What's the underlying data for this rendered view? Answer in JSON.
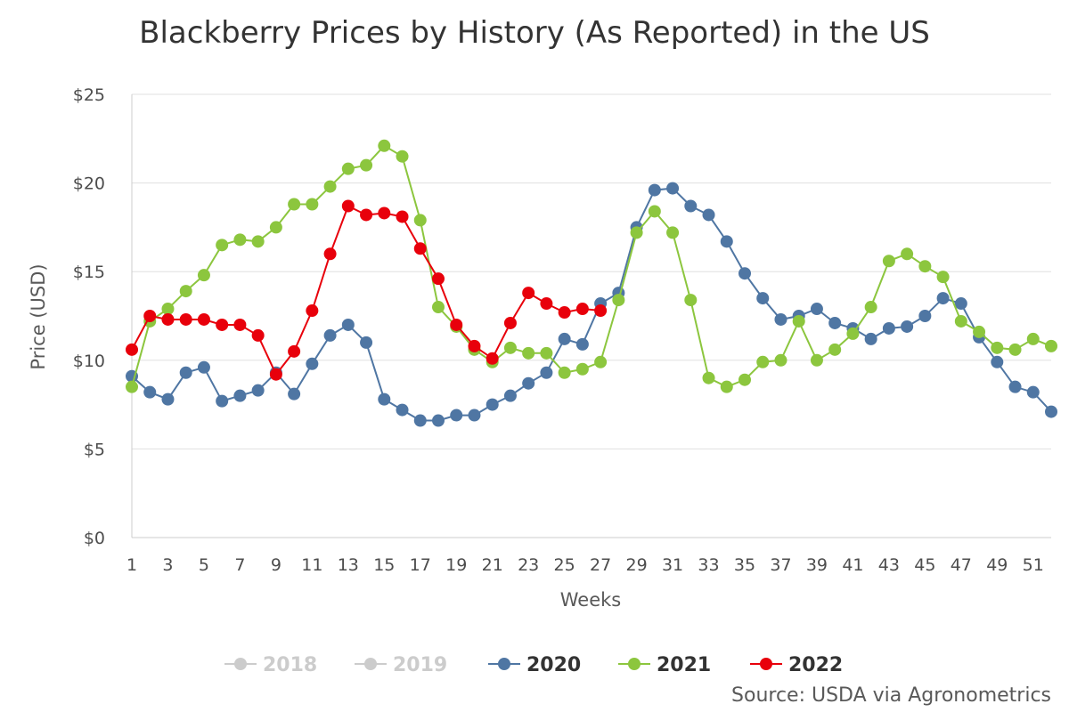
{
  "chart_data": {
    "type": "line",
    "title": "Blackberry Prices by History (As Reported) in the US",
    "xlabel": "Weeks",
    "ylabel": "Price (USD)",
    "x_ticks": [
      "1",
      "3",
      "5",
      "7",
      "9",
      "11",
      "13",
      "15",
      "17",
      "19",
      "21",
      "23",
      "25",
      "27",
      "29",
      "31",
      "33",
      "35",
      "37",
      "39",
      "41",
      "43",
      "45",
      "47",
      "49",
      "51"
    ],
    "y_ticks": [
      "$0",
      "$5",
      "$10",
      "$15",
      "$20",
      "$25"
    ],
    "xlim": [
      1,
      52
    ],
    "ylim": [
      0,
      25
    ],
    "grid": "horizontal",
    "legend_position": "bottom",
    "source": "Source: USDA via Agronometrics",
    "series": [
      {
        "name": "2018",
        "color": "#c8c8c8",
        "visible": false,
        "x": [],
        "y": []
      },
      {
        "name": "2019",
        "color": "#c8c8c8",
        "visible": false,
        "x": [],
        "y": []
      },
      {
        "name": "2020",
        "color": "#4f76a3",
        "visible": true,
        "x": [
          1,
          2,
          3,
          4,
          5,
          6,
          7,
          8,
          9,
          10,
          11,
          12,
          13,
          14,
          15,
          16,
          17,
          18,
          19,
          20,
          21,
          22,
          23,
          24,
          25,
          26,
          27,
          28,
          29,
          30,
          31,
          32,
          33,
          34,
          35,
          36,
          37,
          38,
          39,
          40,
          41,
          42,
          43,
          44,
          45,
          46,
          47,
          48,
          49,
          50,
          51,
          52
        ],
        "y": [
          9.1,
          8.2,
          7.8,
          9.3,
          9.6,
          7.7,
          8.0,
          8.3,
          9.3,
          8.1,
          9.8,
          11.4,
          12.0,
          11.0,
          7.8,
          7.2,
          6.6,
          6.6,
          6.9,
          6.9,
          7.5,
          8.0,
          8.7,
          9.3,
          11.2,
          10.9,
          13.2,
          13.8,
          17.5,
          19.6,
          19.7,
          18.7,
          18.2,
          16.7,
          14.9,
          13.5,
          12.3,
          12.5,
          12.9,
          12.1,
          11.8,
          11.2,
          11.8,
          11.9,
          12.5,
          13.5,
          13.2,
          11.3,
          9.9,
          8.5,
          8.2,
          7.1
        ]
      },
      {
        "name": "2021",
        "color": "#8cc63e",
        "visible": true,
        "x": [
          1,
          2,
          3,
          4,
          5,
          6,
          7,
          8,
          9,
          10,
          11,
          12,
          13,
          14,
          15,
          16,
          17,
          18,
          19,
          20,
          21,
          22,
          23,
          24,
          25,
          26,
          27,
          28,
          29,
          30,
          31,
          32,
          33,
          34,
          35,
          36,
          37,
          38,
          39,
          40,
          41,
          42,
          43,
          44,
          45,
          46,
          47,
          48,
          49,
          50,
          51,
          52
        ],
        "y": [
          8.5,
          12.2,
          12.9,
          13.9,
          14.8,
          16.5,
          16.8,
          16.7,
          17.5,
          18.8,
          18.8,
          19.8,
          20.8,
          21.0,
          22.1,
          21.5,
          17.9,
          13.0,
          11.9,
          10.6,
          9.9,
          10.7,
          10.4,
          10.4,
          9.3,
          9.5,
          9.9,
          13.4,
          17.2,
          18.4,
          17.2,
          13.4,
          9.0,
          8.5,
          8.9,
          9.9,
          10.0,
          12.2,
          10.0,
          10.6,
          11.5,
          13.0,
          15.6,
          16.0,
          15.3,
          14.7,
          12.2,
          11.6,
          10.7,
          10.6,
          11.2,
          10.8
        ]
      },
      {
        "name": "2022",
        "color": "#e8000b",
        "visible": true,
        "x": [
          1,
          2,
          3,
          4,
          5,
          6,
          7,
          8,
          9,
          10,
          11,
          12,
          13,
          14,
          15,
          16,
          17,
          18,
          19,
          20,
          21,
          22,
          23,
          24,
          25,
          26,
          27
        ],
        "y": [
          10.6,
          12.5,
          12.3,
          12.3,
          12.3,
          12.0,
          12.0,
          11.4,
          9.2,
          10.5,
          12.8,
          16.0,
          18.7,
          18.2,
          18.3,
          18.1,
          16.3,
          14.6,
          12.0,
          10.8,
          10.1,
          12.1,
          13.8,
          13.2,
          12.7,
          12.9,
          12.8
        ]
      }
    ]
  }
}
